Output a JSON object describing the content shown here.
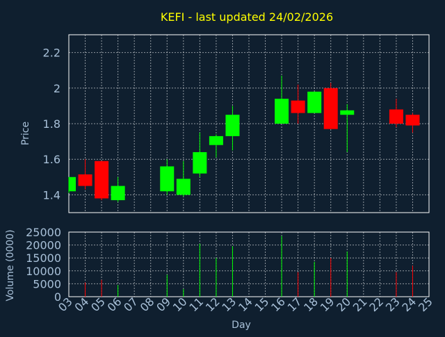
{
  "chart_data": [
    {
      "type": "candlestick",
      "title": "KEFI - last updated 24/02/2026",
      "ylabel": "Price",
      "ylim": [
        1.3,
        2.3
      ],
      "yticks": [
        1.4,
        1.6,
        1.8,
        2.0,
        2.2
      ],
      "ytick_labels": [
        "1.4",
        "1.6",
        "1.8",
        "2",
        "2.2"
      ],
      "grid": true,
      "colors": {
        "up": "#00ff00",
        "down": "#ff0000",
        "title": "#ffff00",
        "axis_text": "#a8c0d8",
        "background": "#0f1f2f",
        "grid": "#ffffff"
      },
      "candles": [
        {
          "day": 3,
          "open": 1.42,
          "high": 1.5,
          "low": 1.41,
          "close": 1.5
        },
        {
          "day": 4,
          "open": 1.515,
          "high": 1.6,
          "low": 1.43,
          "close": 1.45
        },
        {
          "day": 5,
          "open": 1.59,
          "high": 1.59,
          "low": 1.37,
          "close": 1.38
        },
        {
          "day": 6,
          "open": 1.37,
          "high": 1.5,
          "low": 1.36,
          "close": 1.45
        },
        {
          "day": 9,
          "open": 1.42,
          "high": 1.6,
          "low": 1.4,
          "close": 1.56
        },
        {
          "day": 10,
          "open": 1.4,
          "high": 1.59,
          "low": 1.39,
          "close": 1.49
        },
        {
          "day": 11,
          "open": 1.52,
          "high": 1.75,
          "low": 1.5,
          "close": 1.64
        },
        {
          "day": 12,
          "open": 1.68,
          "high": 1.74,
          "low": 1.61,
          "close": 1.73
        },
        {
          "day": 13,
          "open": 1.73,
          "high": 1.9,
          "low": 1.65,
          "close": 1.85
        },
        {
          "day": 16,
          "open": 1.8,
          "high": 2.07,
          "low": 1.8,
          "close": 1.94
        },
        {
          "day": 17,
          "open": 1.93,
          "high": 2.02,
          "low": 1.8,
          "close": 1.86
        },
        {
          "day": 18,
          "open": 1.86,
          "high": 1.98,
          "low": 1.86,
          "close": 1.98
        },
        {
          "day": 19,
          "open": 2.0,
          "high": 2.03,
          "low": 1.77,
          "close": 1.77
        },
        {
          "day": 20,
          "open": 1.85,
          "high": 1.91,
          "low": 1.64,
          "close": 1.875
        },
        {
          "day": 23,
          "open": 1.88,
          "high": 1.94,
          "low": 1.78,
          "close": 1.8
        },
        {
          "day": 24,
          "open": 1.85,
          "high": 1.86,
          "low": 1.75,
          "close": 1.79
        }
      ]
    },
    {
      "type": "bar",
      "ylabel": "Volume (0000)",
      "xlabel": "Day",
      "ylim": [
        0,
        25000
      ],
      "yticks": [
        0,
        5000,
        10000,
        15000,
        20000,
        25000
      ],
      "ytick_labels": [
        "0",
        "5000",
        "10000",
        "15000",
        "20000",
        "25000"
      ],
      "xlim": [
        3,
        25
      ],
      "xtick_labels": [
        "03",
        "04",
        "05",
        "06",
        "07",
        "08",
        "09",
        "10",
        "11",
        "12",
        "13",
        "14",
        "15",
        "16",
        "17",
        "18",
        "19",
        "20",
        "21",
        "22",
        "23",
        "24",
        "25"
      ],
      "bars": [
        {
          "day": 4,
          "value": 5500,
          "direction": "down"
        },
        {
          "day": 5,
          "value": 6500,
          "direction": "down"
        },
        {
          "day": 6,
          "value": 4500,
          "direction": "up"
        },
        {
          "day": 9,
          "value": 8500,
          "direction": "up"
        },
        {
          "day": 10,
          "value": 3000,
          "direction": "up"
        },
        {
          "day": 11,
          "value": 20500,
          "direction": "up"
        },
        {
          "day": 12,
          "value": 15000,
          "direction": "up"
        },
        {
          "day": 13,
          "value": 19500,
          "direction": "up"
        },
        {
          "day": 16,
          "value": 23500,
          "direction": "up"
        },
        {
          "day": 17,
          "value": 9500,
          "direction": "down"
        },
        {
          "day": 18,
          "value": 13500,
          "direction": "up"
        },
        {
          "day": 19,
          "value": 15000,
          "direction": "down"
        },
        {
          "day": 20,
          "value": 17500,
          "direction": "up"
        },
        {
          "day": 23,
          "value": 9500,
          "direction": "down"
        },
        {
          "day": 24,
          "value": 12000,
          "direction": "down"
        }
      ]
    }
  ]
}
